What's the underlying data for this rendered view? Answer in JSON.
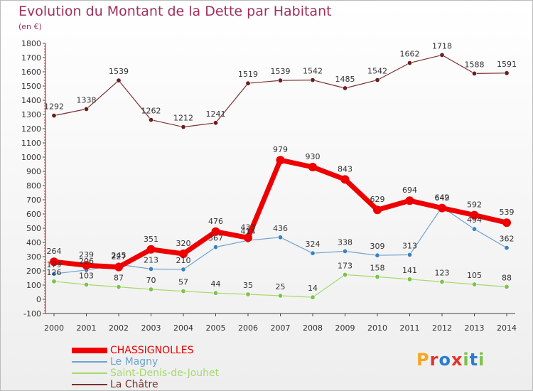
{
  "title": "Evolution du Montant de la Dette par Habitant",
  "unit_label": "(en €)",
  "logo": {
    "text": "Proxiti",
    "colors": [
      "#f5a623",
      "#e2342c",
      "#2d7bd0",
      "#e2342c",
      "#7cc24a",
      "#2d7bd0",
      "#7cc24a"
    ]
  },
  "chart_data": {
    "type": "line",
    "title": "Evolution du Montant de la Dette par Habitant",
    "ylabel": "(en €)",
    "xlabel": "",
    "x": [
      "2000",
      "2001",
      "2002",
      "2003",
      "2004",
      "2005",
      "2006",
      "2007",
      "2008",
      "2009",
      "2010",
      "2011",
      "2012",
      "2013",
      "2014"
    ],
    "ylim": [
      -100,
      1800
    ],
    "yticks": [
      "-100",
      "0",
      "100",
      "200",
      "300",
      "400",
      "500",
      "600",
      "700",
      "800",
      "900",
      "1000",
      "1100",
      "1200",
      "1300",
      "1400",
      "1500",
      "1600",
      "1700",
      "1800"
    ],
    "grid": false,
    "legend_position": "bottom-left",
    "series": [
      {
        "name": "CHASSIGNOLLES",
        "color": "#ee0000",
        "marker": "#ee0000",
        "width": 7,
        "point_radius": 6,
        "label_dy": -11,
        "values": [
          264,
          239,
          227,
          351,
          320,
          476,
          433,
          979,
          930,
          843,
          629,
          694,
          642,
          592,
          539
        ],
        "labels": [
          "264",
          "239",
          "227",
          "351",
          "320",
          "476",
          "433",
          "979",
          "930",
          "843",
          "629",
          "694",
          "642",
          "592",
          "539"
        ]
      },
      {
        "name": "Le Magny",
        "color": "#6fa3cf",
        "marker": "#3b82c4",
        "width": 1.2,
        "point_radius": 3.2,
        "label_dy": -9,
        "values": [
          179,
          206,
          245,
          213,
          210,
          367,
          414,
          436,
          324,
          338,
          309,
          313,
          649,
          494,
          362
        ],
        "labels": [
          "179",
          "206",
          "245",
          "213",
          "210",
          "367",
          "414",
          "436",
          "324",
          "338",
          "309",
          "313",
          "649",
          "494",
          "362"
        ]
      },
      {
        "name": "Saint-Denis-de-Jouhet",
        "color": "#a6d96a",
        "marker": "#7cc24a",
        "width": 1.2,
        "point_radius": 3.2,
        "label_dy": -9,
        "values": [
          126,
          103,
          87,
          70,
          57,
          44,
          35,
          25,
          14,
          173,
          158,
          141,
          123,
          105,
          88
        ],
        "labels": [
          "126",
          "103",
          "87",
          "70",
          "57",
          "44",
          "35",
          "25",
          "14",
          "173",
          "158",
          "141",
          "123",
          "105",
          "88"
        ]
      },
      {
        "name": "La Châtre",
        "color": "#7a3030",
        "marker": "#6b1e1e",
        "width": 1.2,
        "point_radius": 3.2,
        "label_dy": -9,
        "values": [
          1292,
          1338,
          1539,
          1262,
          1212,
          1241,
          1519,
          1539,
          1542,
          1485,
          1542,
          1662,
          1718,
          1588,
          1591
        ],
        "labels": [
          "1292",
          "1338",
          "1539",
          "1262",
          "1212",
          "1241",
          "1519",
          "1539",
          "1542",
          "1485",
          "1542",
          "1662",
          "1718",
          "1588",
          "1591"
        ]
      }
    ]
  },
  "legend": [
    {
      "label": "CHASSIGNOLLES",
      "color": "#ee0000",
      "thickness": 8
    },
    {
      "label": "Le Magny",
      "color": "#6fa3cf",
      "thickness": 2
    },
    {
      "label": "Saint-Denis-de-Jouhet",
      "color": "#a6d96a",
      "thickness": 2
    },
    {
      "label": "La Châtre",
      "color": "#7a3030",
      "thickness": 2
    }
  ]
}
